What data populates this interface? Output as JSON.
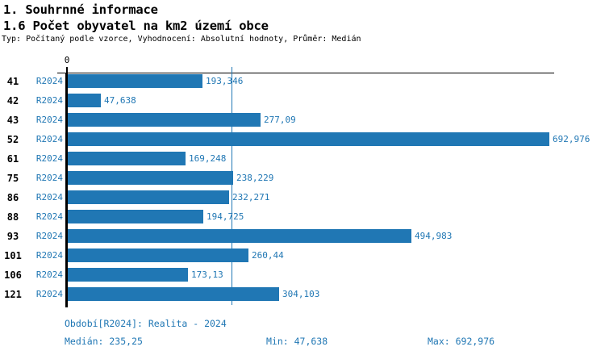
{
  "page": {
    "title": "1. Souhrnné informace",
    "subtitle": "1.6 Počet obyvatel na km2 území obce",
    "settings": "Typ: Počítaný podle vzorce, Vyhodnocení: Absolutní hodnoty, Průměr: Medián"
  },
  "colors": {
    "accent_blue": "#2077b4",
    "axis_black": "#000000",
    "background": "#ffffff"
  },
  "chart_data": {
    "type": "bar",
    "orientation": "horizontal",
    "title": "1.6 Počet obyvatel na km2 území obce",
    "categories": [
      "41",
      "42",
      "43",
      "52",
      "61",
      "75",
      "86",
      "88",
      "93",
      "101",
      "106",
      "121"
    ],
    "series": [
      {
        "name": "R2024",
        "values": [
          193.346,
          47.638,
          277.09,
          692.976,
          169.248,
          238.229,
          232.271,
          194.725,
          494.983,
          260.44,
          173.13,
          304.103
        ]
      }
    ],
    "value_labels": [
      "193,346",
      "47,638",
      "277,09",
      "692,976",
      "169,248",
      "238,229",
      "232,271",
      "194,725",
      "494,983",
      "260,44",
      "173,13",
      "304,103"
    ],
    "axis": {
      "origin_label": "0",
      "xlim": [
        0,
        700
      ],
      "median_value": 235.25,
      "grid": false
    },
    "legend": "none",
    "bar_color": "#2077b4",
    "stats": {
      "median": 235.25,
      "min": 47.638,
      "max": 692.976
    }
  },
  "footer": {
    "period": "Období[R2024]: Realita - 2024",
    "median": "Medián: 235,25",
    "min": "Min: 47,638",
    "max": "Max: 692,976"
  }
}
